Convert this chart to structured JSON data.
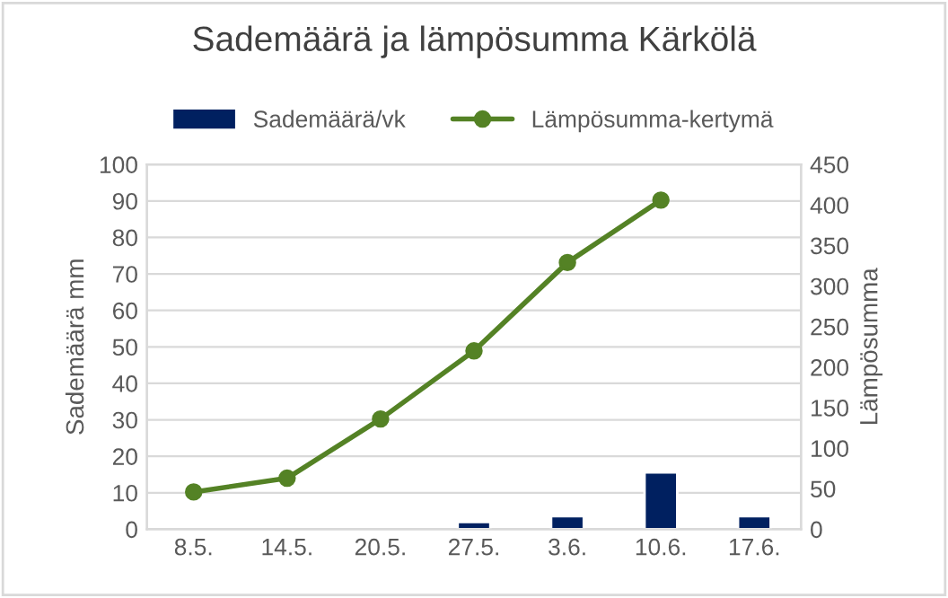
{
  "chart_data": {
    "type": "bar",
    "title": "Sademäärä ja lämpösumma Kärkölä",
    "categories": [
      "8.5.",
      "14.5.",
      "20.5.",
      "27.5.",
      "3.6.",
      "10.6.",
      "17.6."
    ],
    "series": [
      {
        "name": "Sademäärä/vk",
        "color": "#002060",
        "values": [
          null,
          null,
          null,
          2,
          3.6,
          15.6,
          3.6
        ]
      },
      {
        "name": "Lämpösumma-kertymä",
        "type": "line",
        "axis": "y2",
        "color": "#548225",
        "marker": "circle",
        "values": [
          46,
          63,
          136,
          220,
          329,
          406,
          null
        ]
      }
    ],
    "ylabel": "Sademäärä mm",
    "y2label": "Lämpösumma",
    "ylim": [
      0,
      100
    ],
    "yticks": [
      0,
      10,
      20,
      30,
      40,
      50,
      60,
      70,
      80,
      90,
      100
    ],
    "y2lim": [
      0,
      450
    ],
    "y2ticks": [
      0,
      50,
      100,
      150,
      200,
      250,
      300,
      350,
      400,
      450
    ],
    "grid": "y",
    "legend": "top"
  }
}
